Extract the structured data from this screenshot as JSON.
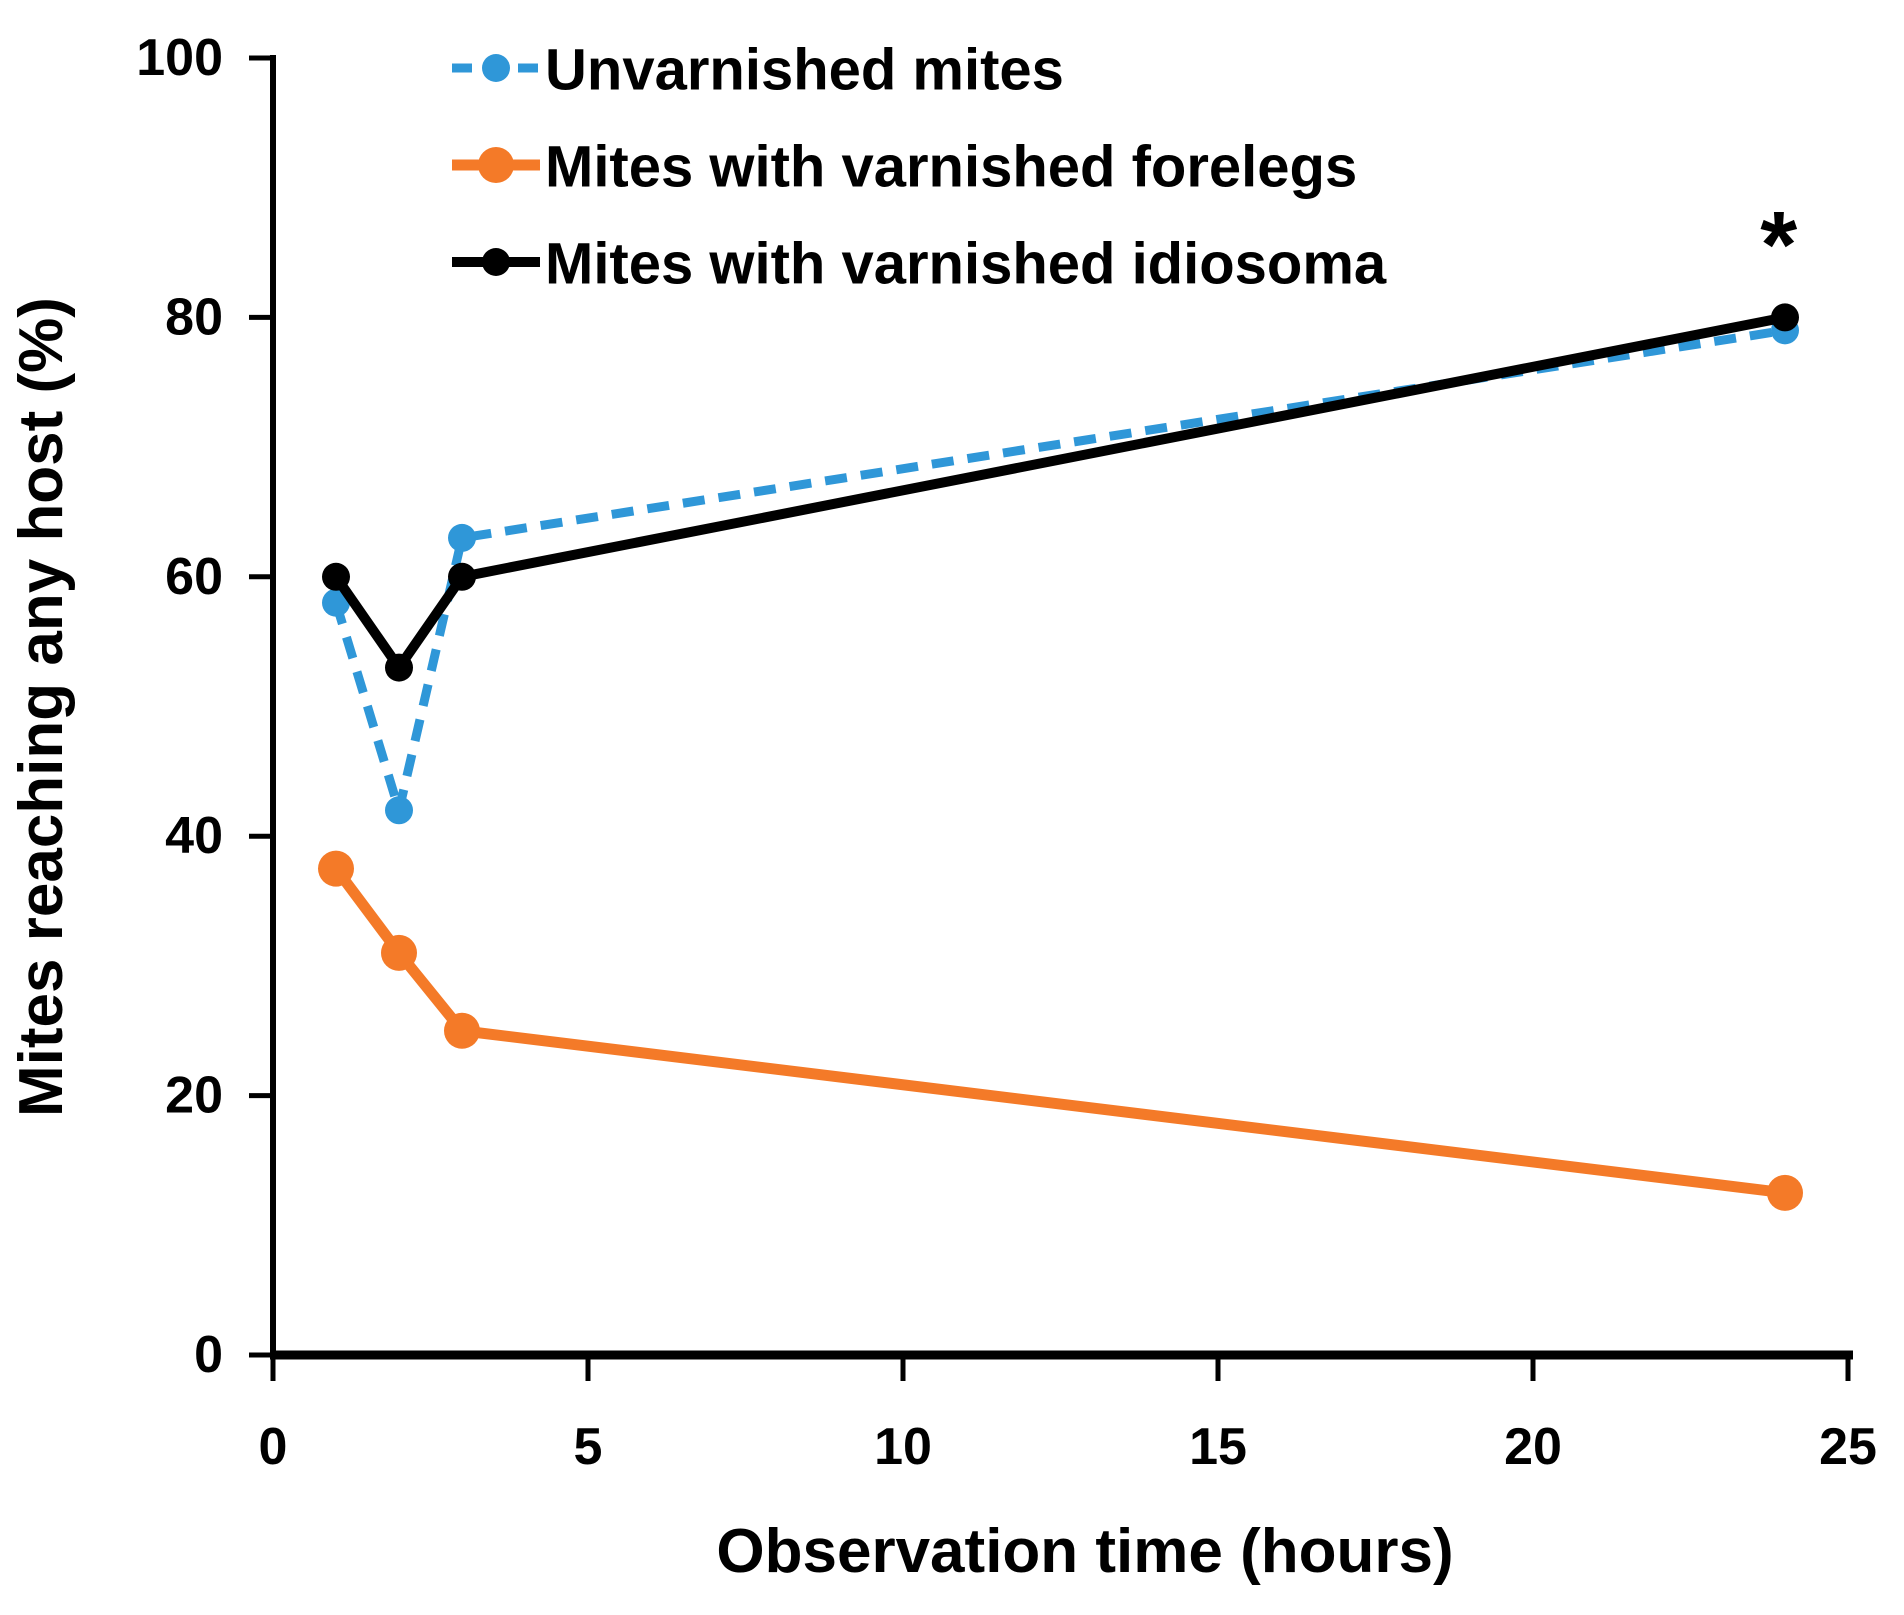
{
  "colors": {
    "background": "#ffffff",
    "axis": "#000000",
    "text": "#000000"
  },
  "chart_data": {
    "type": "line",
    "title": "",
    "xlabel": "Observation time (hours)",
    "ylabel": "Mites reaching any host (%)",
    "xlim": [
      0,
      25
    ],
    "ylim": [
      0,
      100
    ],
    "x_tick_values": [
      0,
      5,
      10,
      15,
      20,
      25
    ],
    "x_tick_labels": [
      "0",
      "5",
      "10",
      "15",
      "20",
      "25"
    ],
    "y_tick_values": [
      0,
      20,
      40,
      60,
      80,
      100
    ],
    "y_tick_labels": [
      "0",
      "20",
      "40",
      "60",
      "80",
      "100"
    ],
    "grid": false,
    "legend_position": "top-left-inside",
    "x": [
      1,
      2,
      3,
      24
    ],
    "series": [
      {
        "name": "Unvarnished mites",
        "values": [
          58,
          42,
          63,
          79
        ],
        "color": "#2F97D8",
        "line_style": "dashed",
        "line_width": 9,
        "marker": "circle",
        "marker_radius": 14
      },
      {
        "name": "Mites with varnished forelegs",
        "values": [
          37.5,
          31,
          25,
          12.5
        ],
        "color": "#F47A28",
        "line_style": "solid",
        "line_width": 11,
        "marker": "circle",
        "marker_radius": 18
      },
      {
        "name": "Mites with varnished idiosoma",
        "values": [
          60,
          53,
          60,
          80
        ],
        "color": "#000000",
        "line_style": "solid",
        "line_width": 10,
        "marker": "circle",
        "marker_radius": 14
      }
    ],
    "annotations": [
      {
        "text": "*",
        "x": 23.9,
        "y": 86.5
      }
    ]
  }
}
